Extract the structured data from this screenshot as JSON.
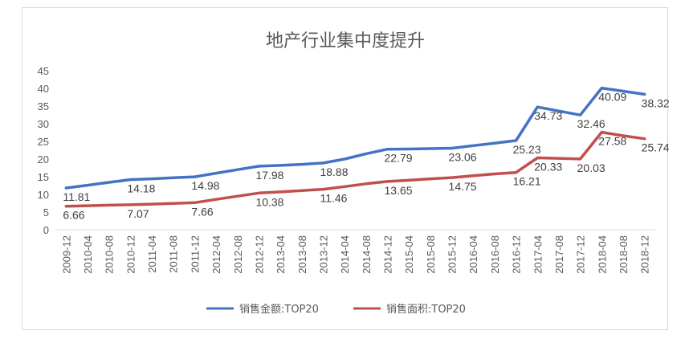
{
  "chart_data": {
    "type": "line",
    "title": "地产行业集中度提升",
    "xlabel": "",
    "ylabel": "",
    "ylim": [
      0,
      45
    ],
    "yticks": [
      0,
      5,
      10,
      15,
      20,
      25,
      30,
      35,
      40,
      45
    ],
    "grid": false,
    "legend_position": "bottom",
    "categories": [
      "2009-12",
      "2010-04",
      "2010-08",
      "2010-12",
      "2011-04",
      "2011-08",
      "2011-12",
      "2012-04",
      "2012-08",
      "2012-12",
      "2013-04",
      "2013-08",
      "2013-12",
      "2014-04",
      "2014-08",
      "2014-12",
      "2015-04",
      "2015-08",
      "2015-12",
      "2016-04",
      "2016-08",
      "2016-12",
      "2017-04",
      "2017-08",
      "2017-12",
      "2018-04",
      "2018-08",
      "2018-12"
    ],
    "series": [
      {
        "name": "销售金额:TOP20",
        "color": "#4472c4",
        "values": [
          11.81,
          12.6,
          13.4,
          14.18,
          14.4,
          14.7,
          14.98,
          16.0,
          17.0,
          17.98,
          18.2,
          18.5,
          18.88,
          20.0,
          21.5,
          22.79,
          22.85,
          22.95,
          23.06,
          23.8,
          24.5,
          25.23,
          34.73,
          33.6,
          32.46,
          40.09,
          39.2,
          38.32
        ],
        "labels": [
          {
            "index": 0,
            "text": "11.81"
          },
          {
            "index": 3,
            "text": "14.18"
          },
          {
            "index": 6,
            "text": "14.98"
          },
          {
            "index": 9,
            "text": "17.98"
          },
          {
            "index": 12,
            "text": "18.88"
          },
          {
            "index": 15,
            "text": "22.79"
          },
          {
            "index": 18,
            "text": "23.06"
          },
          {
            "index": 21,
            "text": "25.23"
          },
          {
            "index": 22,
            "text": "34.73"
          },
          {
            "index": 24,
            "text": "32.46"
          },
          {
            "index": 25,
            "text": "40.09"
          },
          {
            "index": 27,
            "text": "38.32"
          }
        ]
      },
      {
        "name": "销售面积:TOP20",
        "color": "#c0504d",
        "values": [
          6.66,
          6.8,
          6.95,
          7.07,
          7.25,
          7.45,
          7.66,
          8.6,
          9.5,
          10.38,
          10.7,
          11.1,
          11.46,
          12.2,
          13.0,
          13.65,
          14.0,
          14.4,
          14.75,
          15.3,
          15.8,
          16.21,
          20.33,
          20.2,
          20.03,
          27.58,
          26.6,
          25.74
        ],
        "labels": [
          {
            "index": 0,
            "text": "6.66"
          },
          {
            "index": 3,
            "text": "7.07"
          },
          {
            "index": 6,
            "text": "7.66"
          },
          {
            "index": 9,
            "text": "10.38"
          },
          {
            "index": 12,
            "text": "11.46"
          },
          {
            "index": 15,
            "text": "13.65"
          },
          {
            "index": 18,
            "text": "14.75"
          },
          {
            "index": 21,
            "text": "16.21"
          },
          {
            "index": 22,
            "text": "20.33"
          },
          {
            "index": 24,
            "text": "20.03"
          },
          {
            "index": 25,
            "text": "27.58"
          },
          {
            "index": 27,
            "text": "25.74"
          }
        ]
      }
    ]
  }
}
